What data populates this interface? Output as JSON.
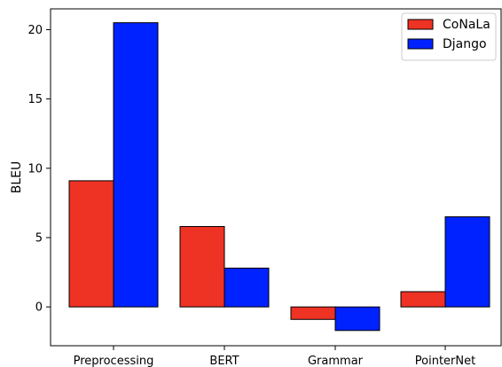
{
  "chart_data": {
    "type": "bar",
    "title": "",
    "xlabel": "",
    "ylabel": "BLEU",
    "categories": [
      "Preprocessing",
      "BERT",
      "Grammar",
      "PointerNet"
    ],
    "series": [
      {
        "name": "CoNaLa",
        "values": [
          9.1,
          5.8,
          -0.9,
          1.1
        ],
        "color": "#ee3224"
      },
      {
        "name": "Django",
        "values": [
          20.5,
          2.8,
          -1.7,
          6.5
        ],
        "color": "#0022ff"
      }
    ],
    "ylim": [
      -2.8,
      21.5
    ],
    "yticks": [
      0,
      5,
      10,
      15,
      20
    ],
    "grid": false,
    "legend_position": "top-right"
  }
}
